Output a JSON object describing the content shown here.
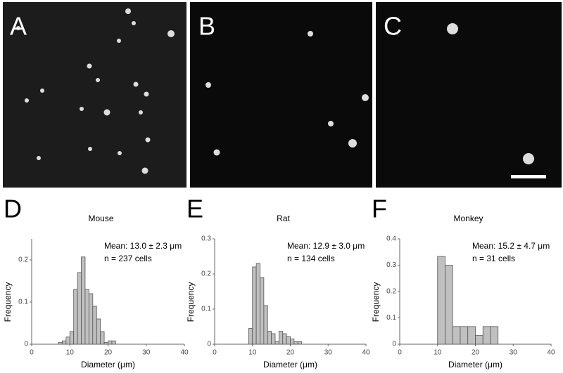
{
  "panels": [
    "A",
    "B",
    "C"
  ],
  "chart_data": [
    {
      "type": "histogram",
      "label": "D",
      "title": "Mouse",
      "annotation": [
        "Mean: 13.0 ± 2.3 μm",
        "n = 237 cells"
      ],
      "xlabel": "Diameter (μm)",
      "ylabel": "Frequency",
      "color": "#c0c0c0",
      "bins": [
        7,
        8,
        9,
        10,
        11,
        12,
        13,
        14,
        15,
        16,
        17,
        18,
        19,
        20,
        21,
        22
      ],
      "values": [
        0.004,
        0.008,
        0.017,
        0.03,
        0.13,
        0.17,
        0.207,
        0.13,
        0.12,
        0.09,
        0.06,
        0.03,
        0.004,
        0.008,
        0.008
      ],
      "xlim": [
        0,
        40
      ],
      "xticks": [
        0,
        10,
        20,
        30,
        40
      ],
      "ylim": [
        0,
        0.25
      ],
      "yticks": [
        0,
        0.1,
        0.2
      ]
    },
    {
      "type": "histogram",
      "label": "E",
      "title": "Rat",
      "annotation": [
        "Mean: 12.9 ± 3.0 μm",
        "n = 134 cells"
      ],
      "xlabel": "Diameter (μm)",
      "ylabel": "Frequency",
      "color": "#c0c0c0",
      "bins": [
        9,
        10,
        11,
        12,
        13,
        14,
        15,
        16,
        17,
        18,
        19,
        20,
        21,
        22,
        23
      ],
      "values": [
        0.045,
        0.22,
        0.23,
        0.19,
        0.11,
        0.037,
        0.03,
        0.007,
        0.037,
        0.03,
        0.022,
        0.015,
        0.007,
        0.007
      ],
      "xlim": [
        0,
        40
      ],
      "xticks": [
        0,
        10,
        20,
        30,
        40
      ],
      "ylim": [
        0,
        0.3
      ],
      "yticks": [
        0,
        0.1,
        0.2,
        0.3
      ]
    },
    {
      "type": "histogram",
      "label": "F",
      "title": "Monkey",
      "annotation": [
        "Mean: 15.2 ± 4.7 μm",
        "n = 31 cells"
      ],
      "xlabel": "Diameter (μm)",
      "ylabel": "Frequency",
      "color": "#c0c0c0",
      "bins": [
        10,
        12,
        14,
        16,
        18,
        20,
        22,
        24,
        26
      ],
      "values": [
        0.333,
        0.3,
        0.067,
        0.067,
        0.067,
        0.033,
        0.067,
        0.067
      ],
      "xlim": [
        0,
        40
      ],
      "xticks": [
        0,
        10,
        20,
        30,
        40
      ],
      "ylim": [
        0,
        0.4
      ],
      "yticks": [
        0,
        0.1,
        0.2,
        0.3,
        0.4
      ]
    }
  ]
}
